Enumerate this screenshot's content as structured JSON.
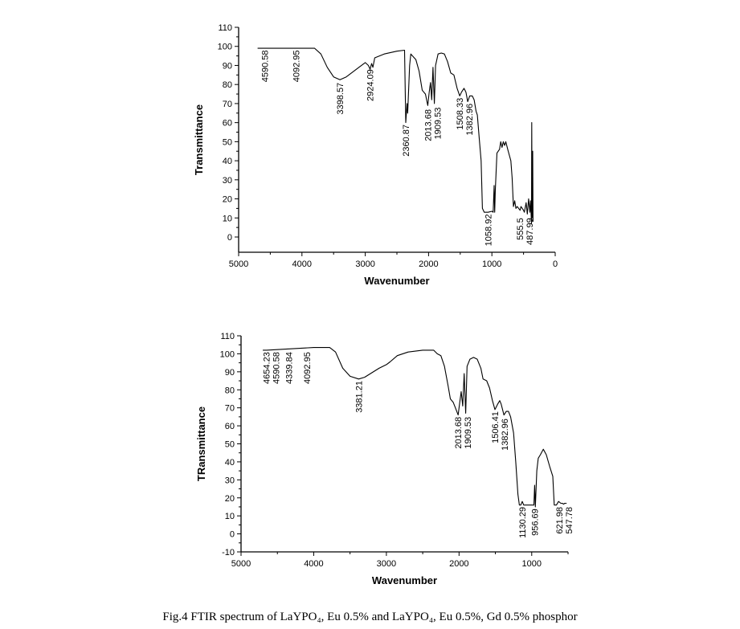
{
  "caption": "Fig.4 FTIR spectrum of LaYPO₄, Eu 0.5% and LaYPO₄, Eu 0.5%, Gd 0.5% phosphor",
  "chart_data": [
    {
      "type": "line",
      "title": "",
      "xlabel": "Wavenumber",
      "ylabel": "Transmittance",
      "xlim": [
        5000,
        0
      ],
      "ylim": [
        -8,
        110
      ],
      "xticks": [
        5000,
        4000,
        3000,
        2000,
        1000,
        0
      ],
      "yticks": [
        0,
        10,
        20,
        30,
        40,
        50,
        60,
        70,
        80,
        90,
        100,
        110
      ],
      "grid": false,
      "series": [
        {
          "name": "LaYPO4, Eu 0.5%",
          "color": "#000000",
          "points": [
            [
              4700,
              99
            ],
            [
              3800,
              99
            ],
            [
              3700,
              96
            ],
            [
              3600,
              89
            ],
            [
              3500,
              84
            ],
            [
              3400,
              82.5
            ],
            [
              3300,
              84
            ],
            [
              3100,
              89
            ],
            [
              3000,
              91.5
            ],
            [
              2950,
              90
            ],
            [
              2924,
              88
            ],
            [
              2900,
              91
            ],
            [
              2880,
              89
            ],
            [
              2850,
              94
            ],
            [
              2700,
              96
            ],
            [
              2500,
              97.5
            ],
            [
              2380,
              98
            ],
            [
              2361,
              60
            ],
            [
              2340,
              70
            ],
            [
              2330,
              65
            ],
            [
              2300,
              90
            ],
            [
              2280,
              96
            ],
            [
              2200,
              93
            ],
            [
              2150,
              87
            ],
            [
              2100,
              77
            ],
            [
              2050,
              75
            ],
            [
              2013,
              69
            ],
            [
              1990,
              76
            ],
            [
              1970,
              81
            ],
            [
              1950,
              72
            ],
            [
              1930,
              89
            ],
            [
              1909,
              70
            ],
            [
              1890,
              90
            ],
            [
              1850,
              96
            ],
            [
              1800,
              96.5
            ],
            [
              1750,
              96
            ],
            [
              1700,
              92
            ],
            [
              1650,
              86
            ],
            [
              1600,
              85
            ],
            [
              1550,
              78
            ],
            [
              1508,
              74
            ],
            [
              1480,
              76
            ],
            [
              1440,
              78
            ],
            [
              1410,
              76
            ],
            [
              1382,
              71
            ],
            [
              1350,
              74
            ],
            [
              1310,
              74
            ],
            [
              1280,
              72
            ],
            [
              1250,
              66
            ],
            [
              1230,
              64
            ],
            [
              1200,
              52
            ],
            [
              1170,
              40
            ],
            [
              1150,
              15
            ],
            [
              1120,
              13
            ],
            [
              1060,
              13
            ],
            [
              1000,
              13.5
            ],
            [
              980,
              13
            ],
            [
              965,
              27
            ],
            [
              955,
              13
            ],
            [
              945,
              25
            ],
            [
              920,
              44
            ],
            [
              900,
              45
            ],
            [
              880,
              46
            ],
            [
              860,
              50
            ],
            [
              840,
              47
            ],
            [
              820,
              50
            ],
            [
              800,
              48
            ],
            [
              780,
              50
            ],
            [
              750,
              46
            ],
            [
              700,
              40
            ],
            [
              680,
              31
            ],
            [
              660,
              16
            ],
            [
              640,
              19
            ],
            [
              620,
              15
            ],
            [
              600,
              16
            ],
            [
              555,
              14
            ],
            [
              540,
              16
            ],
            [
              500,
              14
            ],
            [
              487,
              13
            ],
            [
              460,
              18
            ],
            [
              440,
              12
            ],
            [
              420,
              20
            ],
            [
              400,
              13
            ],
            [
              390,
              19
            ],
            [
              375,
              7
            ],
            [
              370,
              60
            ],
            [
              365,
              10
            ],
            [
              355,
              45
            ],
            [
              350,
              8
            ]
          ]
        }
      ],
      "annotations": [
        {
          "text": "4590.58",
          "x": 4590.58,
          "y": 98
        },
        {
          "text": "4092.95",
          "x": 4092.95,
          "y": 98
        },
        {
          "text": "3398.57",
          "x": 3398.57,
          "y": 81
        },
        {
          "text": "2924.09",
          "x": 2924.09,
          "y": 88
        },
        {
          "text": "2360.87",
          "x": 2360.87,
          "y": 59
        },
        {
          "text": "2013.68",
          "x": 2013.68,
          "y": 67
        },
        {
          "text": "1909.53",
          "x": 1909.53,
          "y": 68
        },
        {
          "text": "1508.33",
          "x": 1508.33,
          "y": 73
        },
        {
          "text": "1382.96",
          "x": 1382.96,
          "y": 70
        },
        {
          "text": "1058.92",
          "x": 1058.92,
          "y": 12
        },
        {
          "text": "555.5",
          "x": 555.5,
          "y": 10
        },
        {
          "text": "487.99",
          "x": 487.99,
          "y": 10
        }
      ]
    },
    {
      "type": "line",
      "title": "",
      "xlabel": "Wavenumber",
      "ylabel": "TRansmittance",
      "xlim": [
        5000,
        500
      ],
      "ylim": [
        -10,
        110
      ],
      "xticks": [
        5000,
        4000,
        3000,
        2000,
        1000
      ],
      "yticks": [
        -10,
        0,
        10,
        20,
        30,
        40,
        50,
        60,
        70,
        80,
        90,
        100,
        110
      ],
      "grid": false,
      "series": [
        {
          "name": "LaYPO4, Eu 0.5%, Gd 0.5%",
          "color": "#000000",
          "points": [
            [
              4700,
              102
            ],
            [
              4650,
              102
            ],
            [
              4000,
              103.5
            ],
            [
              3780,
              103.5
            ],
            [
              3700,
              101
            ],
            [
              3600,
              92
            ],
            [
              3500,
              87.5
            ],
            [
              3381,
              86
            ],
            [
              3300,
              87
            ],
            [
              3100,
              92
            ],
            [
              3000,
              94
            ],
            [
              2950,
              95.5
            ],
            [
              2850,
              99
            ],
            [
              2700,
              101
            ],
            [
              2500,
              102
            ],
            [
              2350,
              102
            ],
            [
              2300,
              100
            ],
            [
              2250,
              99
            ],
            [
              2200,
              93
            ],
            [
              2150,
              82
            ],
            [
              2120,
              75
            ],
            [
              2080,
              73
            ],
            [
              2050,
              70
            ],
            [
              2013,
              66
            ],
            [
              1990,
              73
            ],
            [
              1970,
              79
            ],
            [
              1950,
              71
            ],
            [
              1930,
              89
            ],
            [
              1909,
              67
            ],
            [
              1890,
              93
            ],
            [
              1850,
              97
            ],
            [
              1800,
              98
            ],
            [
              1750,
              97
            ],
            [
              1700,
              92
            ],
            [
              1670,
              86
            ],
            [
              1620,
              85
            ],
            [
              1580,
              81
            ],
            [
              1540,
              74
            ],
            [
              1506,
              69
            ],
            [
              1470,
              72
            ],
            [
              1440,
              74
            ],
            [
              1420,
              72
            ],
            [
              1382,
              66
            ],
            [
              1350,
              68
            ],
            [
              1320,
              68
            ],
            [
              1290,
              65
            ],
            [
              1250,
              56
            ],
            [
              1220,
              40
            ],
            [
              1190,
              22
            ],
            [
              1170,
              16
            ],
            [
              1150,
              16
            ],
            [
              1130,
              18
            ],
            [
              1110,
              16
            ],
            [
              1000,
              16
            ],
            [
              970,
              16
            ],
            [
              960,
              27
            ],
            [
              950,
              15
            ],
            [
              930,
              35
            ],
            [
              910,
              42
            ],
            [
              880,
              44
            ],
            [
              840,
              47
            ],
            [
              800,
              44
            ],
            [
              750,
              37
            ],
            [
              710,
              32
            ],
            [
              690,
              16
            ],
            [
              660,
              16
            ],
            [
              630,
              18
            ],
            [
              600,
              17
            ],
            [
              580,
              17
            ],
            [
              560,
              16.5
            ],
            [
              547,
              17
            ],
            [
              520,
              17
            ]
          ]
        }
      ],
      "annotations": [
        {
          "text": "4654.23",
          "x": 4654.23,
          "y": 101
        },
        {
          "text": "4590.58",
          "x": 4590.58,
          "y": 101
        },
        {
          "text": "4339.84",
          "x": 4339.84,
          "y": 101
        },
        {
          "text": "4092.95",
          "x": 4092.95,
          "y": 101
        },
        {
          "text": "3381.21",
          "x": 3381.21,
          "y": 85
        },
        {
          "text": "2013.68",
          "x": 2013.68,
          "y": 65
        },
        {
          "text": "1909.53",
          "x": 1909.53,
          "y": 65
        },
        {
          "text": "1506.41",
          "x": 1506.41,
          "y": 68
        },
        {
          "text": "1382.96",
          "x": 1382.96,
          "y": 64
        },
        {
          "text": "1130.29",
          "x": 1130.29,
          "y": 15
        },
        {
          "text": "956.69",
          "x": 956.69,
          "y": 14
        },
        {
          "text": "621.98",
          "x": 621.98,
          "y": 15
        },
        {
          "text": "547.78",
          "x": 547.78,
          "y": 15
        }
      ]
    }
  ]
}
